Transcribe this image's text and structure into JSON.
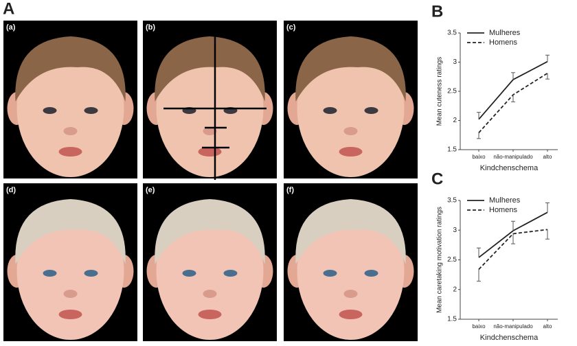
{
  "figure_label": "A",
  "panels": [
    "(a)",
    "(b)",
    "(c)",
    "(d)",
    "(e)",
    "(f)"
  ],
  "chart_data": [
    {
      "type": "line",
      "label": "B",
      "ylabel": "Mean cuteness ratings",
      "xlabel": "Kindchenschema",
      "categories": [
        "baixo",
        "não-manipulado",
        "alto"
      ],
      "ylim": [
        1.5,
        3.5
      ],
      "yticks": [
        1.5,
        2,
        2.5,
        3,
        3.5
      ],
      "series": [
        {
          "name": "Mulheres",
          "color": "#222222",
          "line_style": "solid",
          "values": [
            2.02,
            2.7,
            3.01
          ],
          "errors": [
            0.12,
            0.12,
            0.11
          ]
        },
        {
          "name": "Homens",
          "color": "#222222",
          "line_style": "dashed",
          "values": [
            1.79,
            2.44,
            2.81
          ],
          "errors": [
            0.1,
            0.12,
            0.1
          ]
        }
      ]
    },
    {
      "type": "line",
      "label": "C",
      "ylabel": "Mean caretaking motivation ratings",
      "xlabel": "Kindchenschema",
      "categories": [
        "baixo",
        "não-manipulado",
        "alto"
      ],
      "ylim": [
        1.5,
        3.5
      ],
      "yticks": [
        1.5,
        2,
        2.5,
        3,
        3.5
      ],
      "series": [
        {
          "name": "Mulheres",
          "color": "#222222",
          "line_style": "solid",
          "values": [
            2.54,
            2.99,
            3.3
          ],
          "errors": [
            0.16,
            0.16,
            0.16
          ]
        },
        {
          "name": "Homens",
          "color": "#222222",
          "line_style": "dashed",
          "values": [
            2.34,
            2.94,
            3.01
          ],
          "errors": [
            0.2,
            0.17,
            0.16
          ]
        }
      ]
    }
  ]
}
